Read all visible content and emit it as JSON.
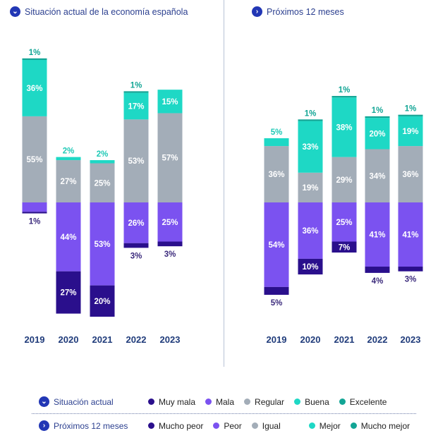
{
  "headers": {
    "left": {
      "title": "Situación actual de la economía española",
      "icon": "chevron-down-circle-icon"
    },
    "right": {
      "title": "Próximos 12 meses",
      "icon": "chevron-right-circle-icon"
    }
  },
  "colors": {
    "muy_mala": "#2a0f8c",
    "mala": "#7b52f0",
    "regular": "#a3adb8",
    "buena": "#1ed8c5",
    "excelente": "#12a595"
  },
  "legend": {
    "rows": [
      {
        "title": "Situación actual",
        "icon": "chevron-down-circle-icon",
        "items": [
          "Muy mala",
          "Mala",
          "Regular",
          "Buena",
          "Excelente"
        ]
      },
      {
        "title": "Próximos 12 meses",
        "icon": "chevron-right-circle-icon",
        "items": [
          "Mucho peor",
          "Peor",
          "Igual",
          "Mejor",
          "Mucho mejor"
        ]
      }
    ]
  },
  "chart_data": [
    {
      "type": "bar",
      "stacked": "diverging",
      "title": "Situación actual de la economía española",
      "categories": [
        "2019",
        "2020",
        "2021",
        "2022",
        "2023"
      ],
      "series": [
        {
          "name": "Muy mala",
          "values": [
            1,
            27,
            20,
            3,
            3
          ],
          "labels": [
            "1%",
            "27%",
            "20%",
            "3%",
            "3%"
          ]
        },
        {
          "name": "Mala",
          "values": [
            6,
            44,
            53,
            26,
            25
          ],
          "labels": [
            null,
            "44%",
            "53%",
            "26%",
            "25%"
          ]
        },
        {
          "name": "Regular",
          "values": [
            55,
            27,
            25,
            53,
            57
          ],
          "labels": [
            "55%",
            "27%",
            "25%",
            "53%",
            "57%"
          ]
        },
        {
          "name": "Buena",
          "values": [
            36,
            2,
            2,
            17,
            15
          ],
          "labels": [
            "36%",
            "2%",
            "2%",
            "17%",
            "15%"
          ]
        },
        {
          "name": "Excelente",
          "values": [
            1,
            0,
            0,
            1,
            0
          ],
          "labels": [
            "1%",
            null,
            null,
            "1%",
            null
          ]
        }
      ],
      "grid": false
    },
    {
      "type": "bar",
      "stacked": "diverging",
      "title": "Próximos 12 meses",
      "categories": [
        "2019",
        "2020",
        "2021",
        "2022",
        "2023"
      ],
      "series": [
        {
          "name": "Mucho peor",
          "values": [
            5,
            10,
            7,
            4,
            3
          ],
          "labels": [
            "5%",
            "10%",
            "7%",
            "4%",
            "3%"
          ]
        },
        {
          "name": "Peor",
          "values": [
            54,
            36,
            25,
            41,
            41
          ],
          "labels": [
            "54%",
            "36%",
            "25%",
            "41%",
            "41%"
          ]
        },
        {
          "name": "Igual",
          "values": [
            36,
            19,
            29,
            34,
            36
          ],
          "labels": [
            "36%",
            "19%",
            "29%",
            "34%",
            "36%"
          ]
        },
        {
          "name": "Mejor",
          "values": [
            5,
            33,
            38,
            20,
            19
          ],
          "labels": [
            "5%",
            "33%",
            "38%",
            "20%",
            "19%"
          ]
        },
        {
          "name": "Mucho mejor",
          "values": [
            0,
            1,
            1,
            1,
            1
          ],
          "labels": [
            null,
            "1%",
            "1%",
            "1%",
            "1%"
          ]
        }
      ],
      "grid": false
    }
  ]
}
